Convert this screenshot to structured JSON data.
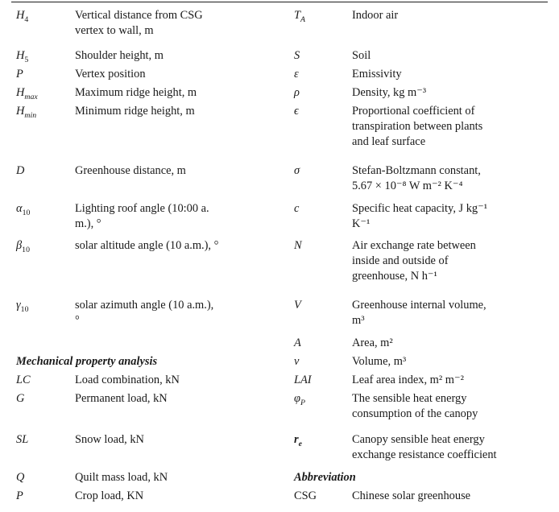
{
  "left_rows": [
    {
      "sym": "H",
      "sub": "4",
      "desc_lines": [
        "Vertical distance from CSG",
        "vertex to wall, m"
      ]
    },
    {
      "sym": "H",
      "sub": "5",
      "desc_lines": [
        "Shoulder height, m"
      ]
    },
    {
      "sym": "P",
      "sub": "",
      "desc_lines": [
        "Vertex position"
      ]
    },
    {
      "sym": "H",
      "sub": "max",
      "desc_lines": [
        "Maximum ridge height, m"
      ]
    },
    {
      "sym": "H",
      "sub": "min",
      "desc_lines": [
        "Minimum ridge height, m"
      ]
    },
    {
      "sym": "D",
      "sub": "",
      "desc_lines": [
        "Greenhouse distance, m"
      ]
    },
    {
      "sym": "α",
      "sub": "10",
      "desc_lines": [
        "Lighting roof angle (10:00 a.",
        "m.), °"
      ]
    },
    {
      "sym": "β",
      "sub": "10",
      "desc_lines": [
        "solar altitude angle (10 a.m.), °"
      ]
    },
    {
      "sym": "γ",
      "sub": "10",
      "desc_lines": [
        "solar azimuth angle (10 a.m.),",
        "°"
      ]
    }
  ],
  "section_mech": "Mechanical property analysis",
  "mech_rows": [
    {
      "sym": "LC",
      "desc": "Load combination, kN"
    },
    {
      "sym": "G",
      "desc": "Permanent load, kN"
    },
    {
      "sym": "SL",
      "desc": "Snow load, kN"
    },
    {
      "sym": "Q",
      "desc": "Quilt mass load, kN"
    },
    {
      "sym": "P",
      "desc": "Crop load, KN"
    }
  ],
  "right_rows": [
    {
      "sym": "T",
      "sub": "A",
      "desc_lines": [
        "Indoor air"
      ]
    },
    {
      "sym": "S",
      "sub": "",
      "desc_lines": [
        "Soil"
      ]
    },
    {
      "sym": "ε",
      "sub": "",
      "desc_lines": [
        "Emissivity"
      ]
    },
    {
      "sym": "ρ",
      "sub": "",
      "desc_lines": [
        "Density, kg m⁻³"
      ]
    },
    {
      "sym": "ϵ",
      "sub": "",
      "desc_lines": [
        "Proportional coefficient of",
        "transpiration between plants",
        "and leaf surface"
      ]
    },
    {
      "sym": "σ",
      "sub": "",
      "desc_lines": [
        "Stefan-Boltzmann constant,",
        "5.67 × 10⁻⁸ W m⁻² K⁻⁴"
      ]
    },
    {
      "sym": "c",
      "sub": "",
      "desc_lines": [
        "Specific heat capacity, J kg⁻¹",
        "K⁻¹"
      ]
    },
    {
      "sym": "N",
      "sub": "",
      "desc_lines": [
        "Air exchange rate between",
        "inside and outside of",
        "greenhouse, N h⁻¹"
      ]
    },
    {
      "sym": "V",
      "sub": "",
      "desc_lines": [
        "Greenhouse internal volume,",
        "m³"
      ]
    },
    {
      "sym": "A",
      "sub": "",
      "desc_lines": [
        "Area, m²"
      ]
    },
    {
      "sym": "v",
      "sub": "",
      "desc_lines": [
        "Volume, m³"
      ]
    },
    {
      "sym": "LAI",
      "sub": "",
      "desc_lines": [
        "Leaf area index, m² m⁻²"
      ]
    },
    {
      "sym": "φ",
      "sub": "P",
      "desc_lines": [
        "The sensible heat energy",
        "consumption of the canopy"
      ]
    },
    {
      "sym": "r",
      "sub": "e",
      "desc_lines": [
        "Canopy sensible heat energy",
        "exchange resistance coefficient"
      ]
    }
  ],
  "section_abbrev": "Abbreviation",
  "abbrev_rows": [
    {
      "sym": "CSG",
      "desc": "Chinese solar greenhouse"
    }
  ]
}
